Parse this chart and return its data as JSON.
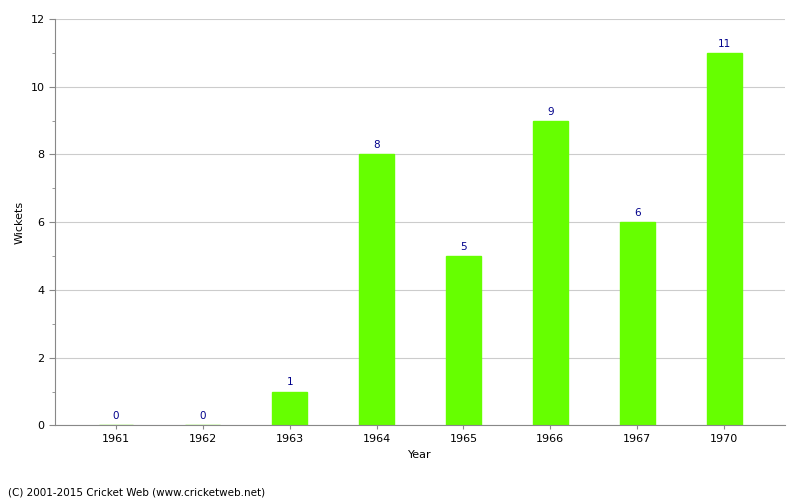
{
  "years": [
    "1961",
    "1962",
    "1963",
    "1964",
    "1965",
    "1966",
    "1967",
    "1970"
  ],
  "values": [
    0,
    0,
    1,
    8,
    5,
    9,
    6,
    11
  ],
  "bar_color": "#66ff00",
  "label_color": "#00008B",
  "xlabel": "Year",
  "ylabel": "Wickets",
  "ylim": [
    0,
    12
  ],
  "yticks_major": [
    0,
    2,
    4,
    6,
    8,
    10,
    12
  ],
  "grid_color": "#cccccc",
  "background_color": "#ffffff",
  "footer_text": "(C) 2001-2015 Cricket Web (www.cricketweb.net)",
  "label_fontsize": 7.5,
  "axis_label_fontsize": 8,
  "tick_fontsize": 8,
  "footer_fontsize": 7.5,
  "bar_width": 0.4,
  "figsize": [
    8.0,
    5.0
  ],
  "dpi": 100
}
